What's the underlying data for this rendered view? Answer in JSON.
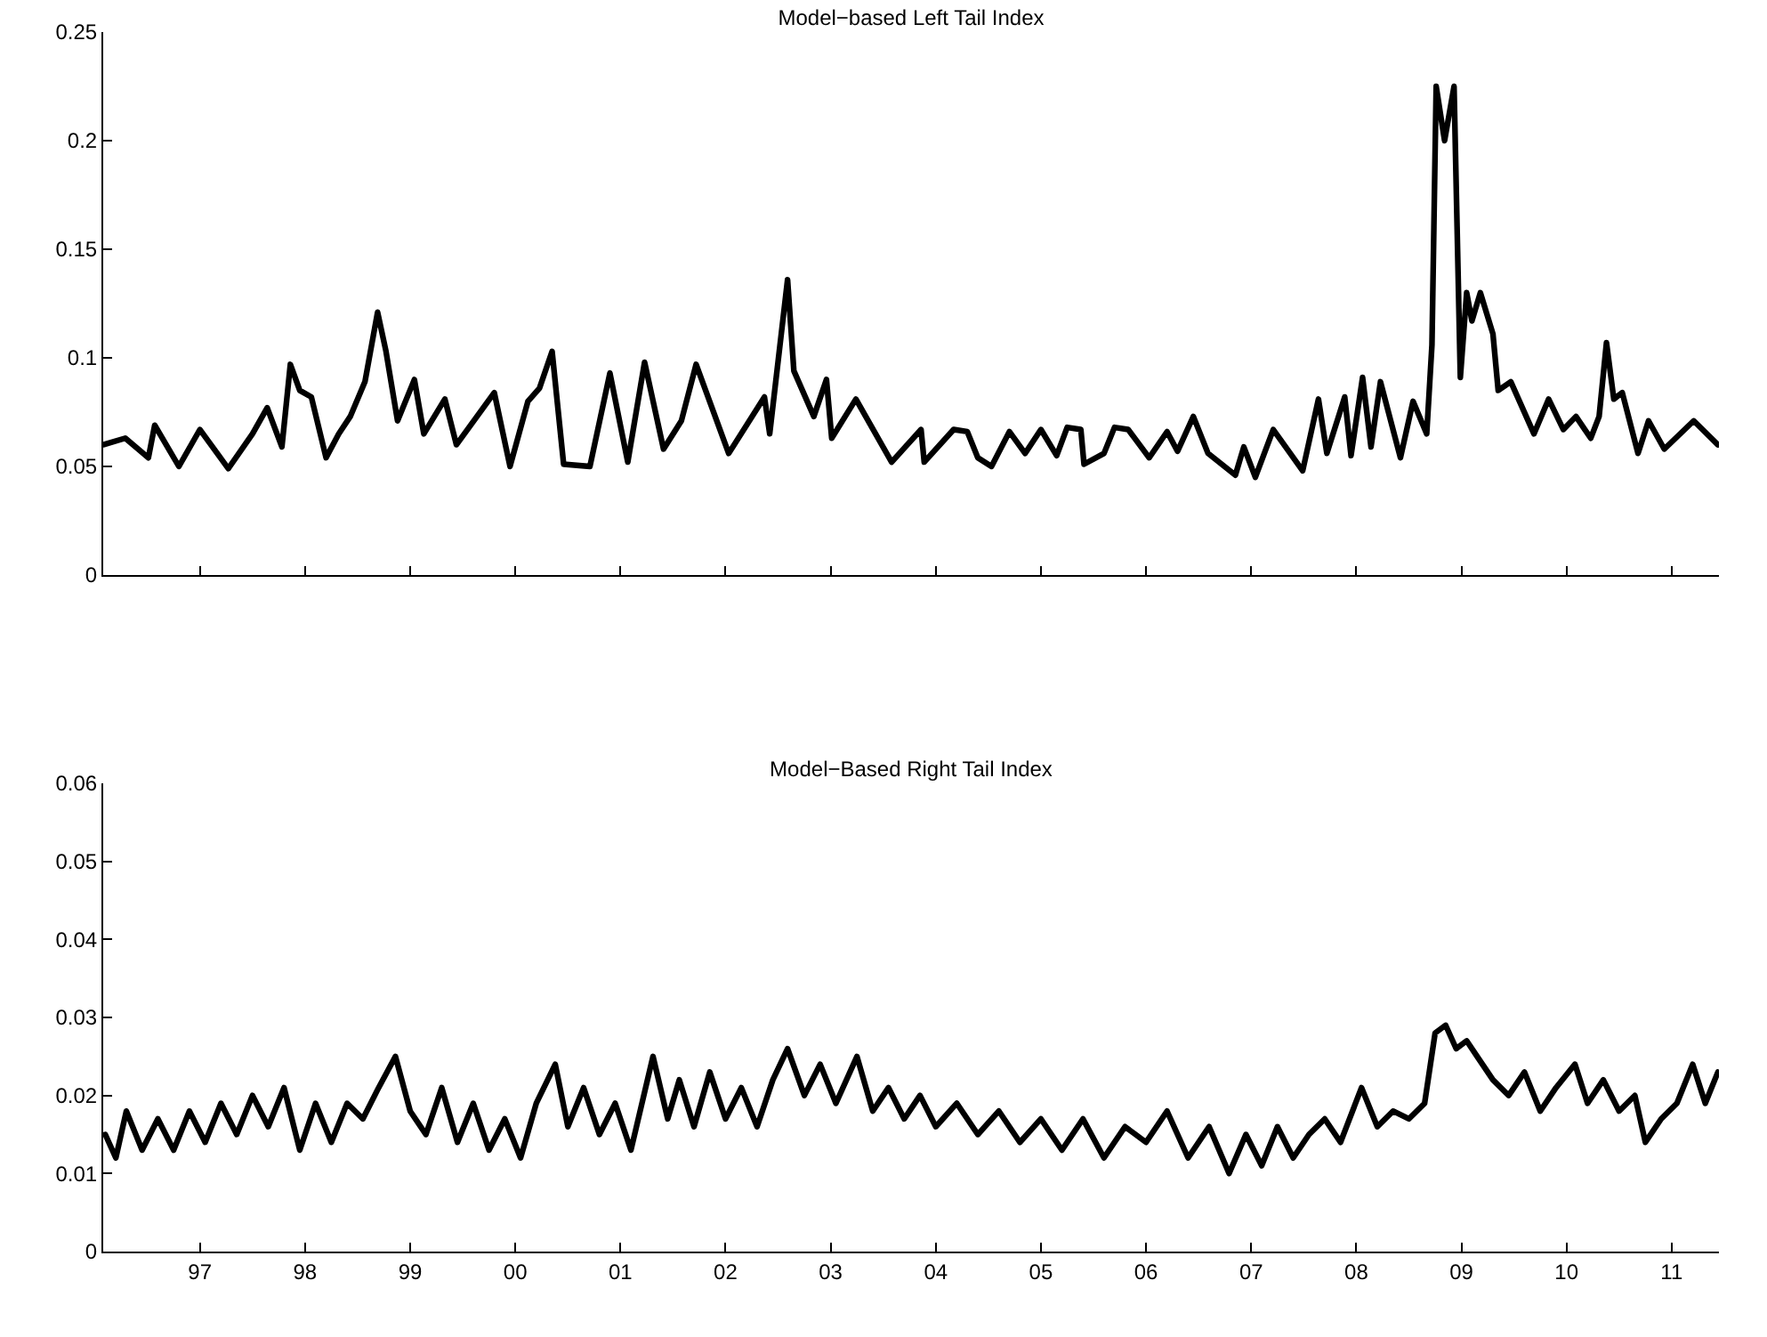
{
  "chart_data": [
    {
      "type": "line",
      "title": "Model−based Left Tail Index",
      "color": "#000000",
      "grid": false,
      "tick_labels": "y",
      "xlim": [
        1996.08,
        2011.45
      ],
      "ylim": [
        0,
        0.25
      ],
      "yticks": [
        0,
        0.05,
        0.1,
        0.15,
        0.2,
        0.25
      ],
      "xticks": [
        {
          "value": 1997,
          "label": null
        },
        {
          "value": 1998,
          "label": null
        },
        {
          "value": 1999,
          "label": null
        },
        {
          "value": 2000,
          "label": null
        },
        {
          "value": 2001,
          "label": null
        },
        {
          "value": 2002,
          "label": null
        },
        {
          "value": 2003,
          "label": null
        },
        {
          "value": 2004,
          "label": null
        },
        {
          "value": 2005,
          "label": null
        },
        {
          "value": 2006,
          "label": null
        },
        {
          "value": 2007,
          "label": null
        },
        {
          "value": 2008,
          "label": null
        },
        {
          "value": 2009,
          "label": null
        },
        {
          "value": 2010,
          "label": null
        },
        {
          "value": 2011,
          "label": null
        }
      ],
      "x": [
        1996.08,
        1996.29,
        1996.51,
        1996.57,
        1996.8,
        1997.0,
        1997.27,
        1997.5,
        1997.64,
        1997.78,
        1997.86,
        1997.95,
        1998.06,
        1998.2,
        1998.32,
        1998.43,
        1998.57,
        1998.69,
        1998.77,
        1998.88,
        1999.04,
        1999.13,
        1999.33,
        1999.44,
        1999.8,
        1999.95,
        2000.12,
        2000.23,
        2000.35,
        2000.46,
        2000.71,
        2000.9,
        2001.07,
        2001.23,
        2001.41,
        2001.58,
        2001.72,
        2002.03,
        2002.37,
        2002.42,
        2002.59,
        2002.65,
        2002.84,
        2002.96,
        2003.01,
        2003.24,
        2003.58,
        2003.86,
        2003.89,
        2004.17,
        2004.3,
        2004.4,
        2004.53,
        2004.7,
        2004.85,
        2005.0,
        2005.15,
        2005.25,
        2005.38,
        2005.41,
        2005.6,
        2005.7,
        2005.83,
        2006.03,
        2006.2,
        2006.3,
        2006.45,
        2006.59,
        2006.85,
        2006.93,
        2007.04,
        2007.21,
        2007.49,
        2007.64,
        2007.72,
        2007.89,
        2007.95,
        2008.06,
        2008.14,
        2008.23,
        2008.42,
        2008.54,
        2008.67,
        2008.72,
        2008.76,
        2008.84,
        2008.93,
        2008.99,
        2009.05,
        2009.1,
        2009.18,
        2009.3,
        2009.35,
        2009.47,
        2009.69,
        2009.83,
        2009.97,
        2010.09,
        2010.23,
        2010.31,
        2010.38,
        2010.45,
        2010.53,
        2010.68,
        2010.78,
        2010.93,
        2011.21,
        2011.44
      ],
      "values": [
        0.06,
        0.063,
        0.054,
        0.069,
        0.05,
        0.067,
        0.049,
        0.065,
        0.077,
        0.059,
        0.097,
        0.085,
        0.082,
        0.054,
        0.065,
        0.073,
        0.089,
        0.121,
        0.103,
        0.071,
        0.09,
        0.065,
        0.081,
        0.06,
        0.084,
        0.05,
        0.08,
        0.086,
        0.103,
        0.051,
        0.05,
        0.093,
        0.052,
        0.098,
        0.058,
        0.071,
        0.097,
        0.056,
        0.082,
        0.065,
        0.136,
        0.094,
        0.073,
        0.09,
        0.063,
        0.081,
        0.052,
        0.067,
        0.052,
        0.067,
        0.066,
        0.054,
        0.05,
        0.066,
        0.056,
        0.067,
        0.055,
        0.068,
        0.067,
        0.051,
        0.056,
        0.068,
        0.067,
        0.054,
        0.066,
        0.057,
        0.073,
        0.056,
        0.046,
        0.059,
        0.045,
        0.067,
        0.048,
        0.081,
        0.056,
        0.082,
        0.055,
        0.091,
        0.059,
        0.089,
        0.054,
        0.08,
        0.065,
        0.106,
        0.225,
        0.2,
        0.225,
        0.091,
        0.13,
        0.117,
        0.13,
        0.111,
        0.085,
        0.089,
        0.065,
        0.081,
        0.067,
        0.073,
        0.063,
        0.073,
        0.107,
        0.081,
        0.084,
        0.056,
        0.071,
        0.058,
        0.071,
        0.06
      ]
    },
    {
      "type": "line",
      "title": "Model−Based Right Tail Index",
      "color": "#000000",
      "grid": false,
      "xlim": [
        1996.08,
        2011.45
      ],
      "ylim": [
        0,
        0.06
      ],
      "yticks": [
        0,
        0.01,
        0.02,
        0.03,
        0.04,
        0.05,
        0.06
      ],
      "xticks": [
        {
          "value": 1997,
          "label": "97"
        },
        {
          "value": 1998,
          "label": "98"
        },
        {
          "value": 1999,
          "label": "99"
        },
        {
          "value": 2000,
          "label": "00"
        },
        {
          "value": 2001,
          "label": "01"
        },
        {
          "value": 2002,
          "label": "02"
        },
        {
          "value": 2003,
          "label": "03"
        },
        {
          "value": 2004,
          "label": "04"
        },
        {
          "value": 2005,
          "label": "05"
        },
        {
          "value": 2006,
          "label": "06"
        },
        {
          "value": 2007,
          "label": "07"
        },
        {
          "value": 2008,
          "label": "08"
        },
        {
          "value": 2009,
          "label": "09"
        },
        {
          "value": 2010,
          "label": "10"
        },
        {
          "value": 2011,
          "label": "11"
        }
      ],
      "x": [
        1996.1,
        1996.2,
        1996.3,
        1996.45,
        1996.6,
        1996.75,
        1996.9,
        1997.05,
        1997.2,
        1997.35,
        1997.5,
        1997.65,
        1997.8,
        1997.95,
        1998.1,
        1998.25,
        1998.4,
        1998.55,
        1998.7,
        1998.86,
        1999.0,
        1999.15,
        1999.3,
        1999.45,
        1999.6,
        1999.75,
        1999.9,
        2000.05,
        2000.2,
        2000.38,
        2000.5,
        2000.65,
        2000.8,
        2000.95,
        2001.1,
        2001.31,
        2001.45,
        2001.56,
        2001.7,
        2001.85,
        2002.0,
        2002.15,
        2002.3,
        2002.45,
        2002.59,
        2002.75,
        2002.9,
        2003.05,
        2003.25,
        2003.4,
        2003.55,
        2003.7,
        2003.85,
        2004.0,
        2004.2,
        2004.4,
        2004.6,
        2004.8,
        2005.0,
        2005.2,
        2005.4,
        2005.6,
        2005.8,
        2006.0,
        2006.2,
        2006.4,
        2006.6,
        2006.79,
        2006.95,
        2007.1,
        2007.25,
        2007.4,
        2007.55,
        2007.7,
        2007.85,
        2008.05,
        2008.2,
        2008.35,
        2008.5,
        2008.65,
        2008.75,
        2008.85,
        2008.95,
        2009.05,
        2009.15,
        2009.3,
        2009.45,
        2009.6,
        2009.75,
        2009.9,
        2010.08,
        2010.2,
        2010.35,
        2010.5,
        2010.65,
        2010.75,
        2010.9,
        2011.05,
        2011.2,
        2011.32,
        2011.44
      ],
      "values": [
        0.015,
        0.012,
        0.018,
        0.013,
        0.017,
        0.013,
        0.018,
        0.014,
        0.019,
        0.015,
        0.02,
        0.016,
        0.021,
        0.013,
        0.019,
        0.014,
        0.019,
        0.017,
        0.021,
        0.025,
        0.018,
        0.015,
        0.021,
        0.014,
        0.019,
        0.013,
        0.017,
        0.012,
        0.019,
        0.024,
        0.016,
        0.021,
        0.015,
        0.019,
        0.013,
        0.025,
        0.017,
        0.022,
        0.016,
        0.023,
        0.017,
        0.021,
        0.016,
        0.022,
        0.026,
        0.02,
        0.024,
        0.019,
        0.025,
        0.018,
        0.021,
        0.017,
        0.02,
        0.016,
        0.019,
        0.015,
        0.018,
        0.014,
        0.017,
        0.013,
        0.017,
        0.012,
        0.016,
        0.014,
        0.018,
        0.012,
        0.016,
        0.01,
        0.015,
        0.011,
        0.016,
        0.012,
        0.015,
        0.017,
        0.014,
        0.021,
        0.016,
        0.018,
        0.017,
        0.019,
        0.028,
        0.029,
        0.026,
        0.027,
        0.025,
        0.022,
        0.02,
        0.023,
        0.018,
        0.021,
        0.024,
        0.019,
        0.022,
        0.018,
        0.02,
        0.014,
        0.017,
        0.019,
        0.024,
        0.019,
        0.023
      ]
    }
  ]
}
